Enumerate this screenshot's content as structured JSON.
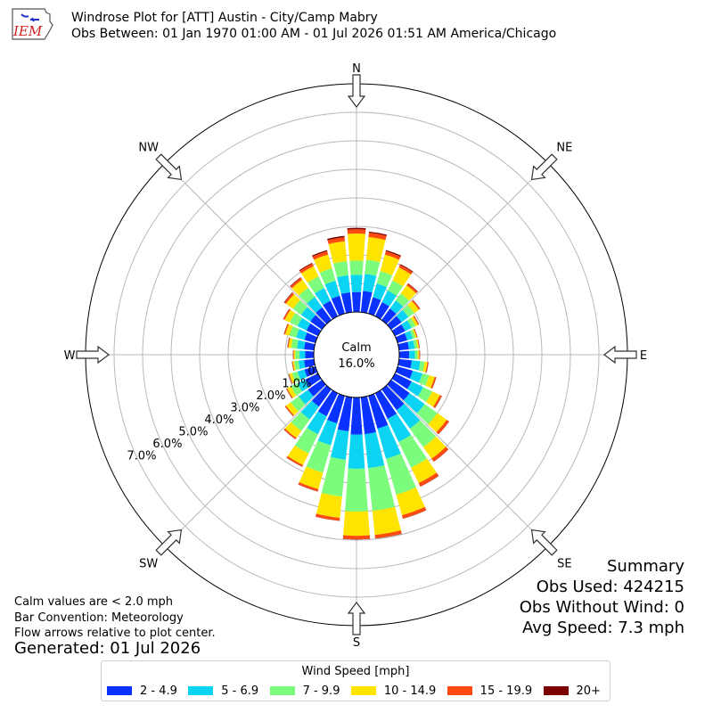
{
  "header": {
    "logo_text": "IEM",
    "title_line1": "Windrose Plot for [ATT] Austin - City/Camp Mabry",
    "title_line2": "Obs Between: 01 Jan 1970 01:00 AM - 01 Jul 2026 01:51 AM America/Chicago"
  },
  "summary": {
    "heading": "Summary",
    "obs_used": "Obs Used: 424215",
    "obs_without_wind": "Obs Without Wind: 0",
    "avg_speed": "Avg Speed: 7.3 mph"
  },
  "notes": {
    "calm": "Calm values are < 2.0 mph",
    "convention": "Bar Convention: Meteorology",
    "arrows": "Flow arrows relative to plot center.",
    "generated": "Generated: 01 Jul 2026"
  },
  "chart_data": {
    "type": "windrose",
    "radial_unit": "%",
    "rlim": [
      0,
      8.0
    ],
    "calm_label": "Calm",
    "calm_value": "16.0%",
    "grid": true,
    "radial_ticks": [
      "0.0%",
      "1.0%",
      "2.0%",
      "3.0%",
      "4.0%",
      "5.0%",
      "6.0%",
      "7.0%"
    ],
    "compass_labels": [
      "N",
      "NE",
      "E",
      "SE",
      "S",
      "SW",
      "W",
      "NW"
    ],
    "legend": {
      "title": "Wind Speed [mph]",
      "placement": "bottom-center",
      "bins": [
        {
          "label": "2 - 4.9",
          "color": "#0a32ff"
        },
        {
          "label": "5 - 6.9",
          "color": "#0bd4f2"
        },
        {
          "label": "7 - 9.9",
          "color": "#7cfc7c"
        },
        {
          "label": "10 - 14.9",
          "color": "#ffe400"
        },
        {
          "label": "15 - 19.9",
          "color": "#ff4b0f"
        },
        {
          "label": "20+",
          "color": "#7d0000"
        }
      ]
    },
    "directions": [
      0,
      10,
      20,
      30,
      40,
      50,
      60,
      70,
      80,
      90,
      100,
      110,
      120,
      130,
      140,
      150,
      160,
      170,
      180,
      190,
      200,
      210,
      220,
      230,
      240,
      250,
      260,
      270,
      280,
      290,
      300,
      310,
      320,
      330,
      340,
      350
    ],
    "series": [
      {
        "name": "2 - 4.9",
        "values": [
          0.7,
          0.75,
          0.6,
          0.55,
          0.5,
          0.45,
          0.4,
          0.35,
          0.35,
          0.35,
          0.45,
          0.55,
          0.65,
          0.8,
          0.9,
          1.0,
          1.2,
          1.3,
          1.3,
          1.2,
          1.0,
          0.9,
          0.75,
          0.6,
          0.5,
          0.4,
          0.35,
          0.3,
          0.35,
          0.4,
          0.45,
          0.5,
          0.55,
          0.6,
          0.65,
          0.7
        ]
      },
      {
        "name": "5 - 6.9",
        "values": [
          0.6,
          0.6,
          0.5,
          0.45,
          0.35,
          0.3,
          0.25,
          0.2,
          0.2,
          0.2,
          0.3,
          0.35,
          0.45,
          0.65,
          0.8,
          0.9,
          1.1,
          1.2,
          1.2,
          1.0,
          0.8,
          0.7,
          0.55,
          0.4,
          0.3,
          0.25,
          0.2,
          0.2,
          0.25,
          0.3,
          0.35,
          0.4,
          0.45,
          0.5,
          0.55,
          0.6
        ]
      },
      {
        "name": "7 - 9.9",
        "values": [
          0.5,
          0.5,
          0.45,
          0.4,
          0.3,
          0.25,
          0.15,
          0.1,
          0.1,
          0.1,
          0.15,
          0.25,
          0.35,
          0.55,
          0.8,
          1.0,
          1.3,
          1.5,
          1.5,
          1.3,
          1.0,
          0.75,
          0.5,
          0.35,
          0.25,
          0.2,
          0.15,
          0.15,
          0.2,
          0.25,
          0.3,
          0.35,
          0.4,
          0.45,
          0.45,
          0.5
        ]
      },
      {
        "name": "10 - 14.9",
        "values": [
          0.95,
          0.8,
          0.6,
          0.5,
          0.35,
          0.2,
          0.1,
          0.05,
          0.05,
          0.05,
          0.1,
          0.2,
          0.3,
          0.4,
          0.5,
          0.6,
          0.75,
          0.85,
          0.85,
          0.75,
          0.6,
          0.45,
          0.3,
          0.2,
          0.15,
          0.1,
          0.05,
          0.05,
          0.1,
          0.15,
          0.2,
          0.3,
          0.35,
          0.4,
          0.5,
          0.7
        ]
      },
      {
        "name": "15 - 19.9",
        "values": [
          0.15,
          0.15,
          0.12,
          0.1,
          0.07,
          0.05,
          0.03,
          0.02,
          0.02,
          0.02,
          0.03,
          0.05,
          0.07,
          0.1,
          0.12,
          0.13,
          0.12,
          0.12,
          0.12,
          0.1,
          0.08,
          0.06,
          0.05,
          0.04,
          0.03,
          0.02,
          0.02,
          0.02,
          0.03,
          0.04,
          0.05,
          0.07,
          0.08,
          0.1,
          0.12,
          0.14
        ]
      },
      {
        "name": "20+",
        "values": [
          0.05,
          0.04,
          0.04,
          0.03,
          0.02,
          0.01,
          0.01,
          0.01,
          0.01,
          0.01,
          0.01,
          0.01,
          0.01,
          0.01,
          0.01,
          0.01,
          0.01,
          0.01,
          0.01,
          0.01,
          0.01,
          0.01,
          0.01,
          0.01,
          0.01,
          0.01,
          0.01,
          0.01,
          0.01,
          0.01,
          0.01,
          0.02,
          0.02,
          0.03,
          0.04,
          0.05
        ]
      }
    ]
  }
}
